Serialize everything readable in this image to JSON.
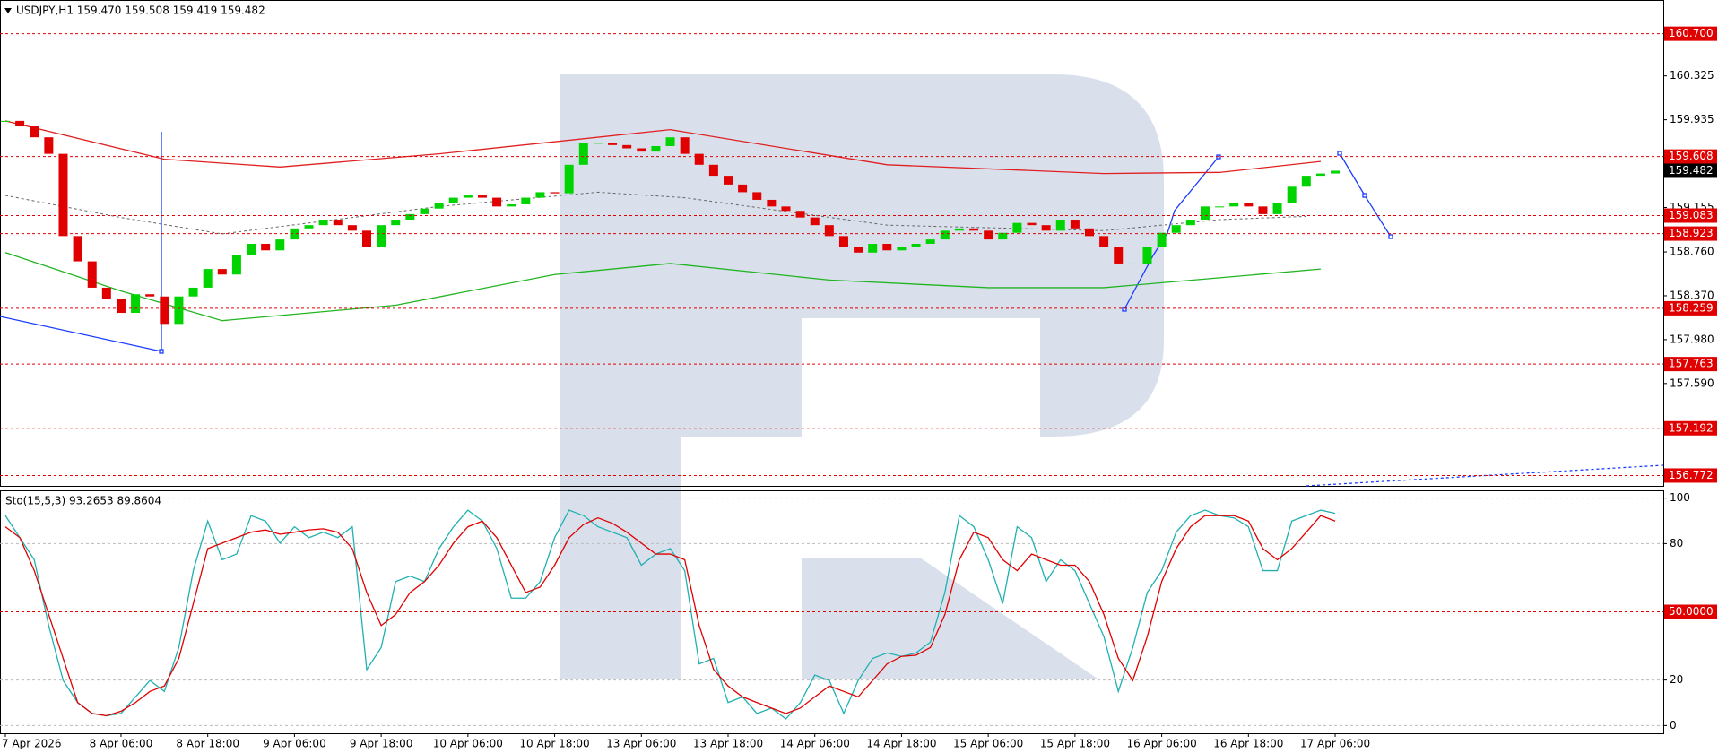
{
  "chart_data": [
    {
      "type": "candlestick",
      "title": "USDJPY,H1  159.470 159.508 159.419 159.482",
      "categories": [
        "7 Apr 2026",
        null,
        null,
        null,
        null,
        null,
        null,
        null,
        "8 Apr 06:00",
        null,
        null,
        null,
        null,
        null,
        "8 Apr 18:00",
        null,
        null,
        null,
        null,
        null,
        "9 Apr 06:00",
        null,
        null,
        null,
        null,
        null,
        "9 Apr 18:00",
        null,
        null,
        null,
        null,
        null,
        "10 Apr 06:00",
        null,
        null,
        null,
        null,
        null,
        "10 Apr 18:00",
        null,
        null,
        null,
        null,
        null,
        "13 Apr 06:00",
        null,
        null,
        null,
        null,
        null,
        "13 Apr 18:00",
        null,
        null,
        null,
        null,
        null,
        "14 Apr 06:00",
        null,
        null,
        null,
        null,
        null,
        "14 Apr 18:00",
        null,
        null,
        null,
        null,
        null,
        "15 Apr 06:00",
        null,
        null,
        null,
        null,
        null,
        "15 Apr 18:00",
        null,
        null,
        null,
        null,
        null,
        "16 Apr 06:00",
        null,
        null,
        null,
        null,
        null,
        "16 Apr 18:00",
        null,
        null,
        null,
        null,
        null,
        "17 Apr 06:00"
      ],
      "close": [
        159.925,
        159.876,
        159.779,
        159.632,
        158.901,
        158.676,
        158.442,
        158.344,
        158.218,
        158.384,
        158.364,
        158.12,
        158.364,
        158.442,
        158.608,
        158.559,
        158.735,
        158.832,
        158.774,
        158.871,
        158.969,
        158.998,
        159.047,
        158.998,
        158.949,
        158.803,
        158.998,
        159.047,
        159.096,
        159.145,
        159.193,
        159.242,
        159.262,
        159.242,
        159.164,
        159.183,
        159.242,
        159.291,
        159.281,
        159.535,
        159.73,
        159.73,
        159.71,
        159.681,
        159.652,
        159.701,
        159.779,
        159.632,
        159.535,
        159.437,
        159.359,
        159.291,
        159.223,
        159.164,
        159.125,
        159.066,
        158.998,
        158.901,
        158.803,
        158.754,
        158.832,
        158.774,
        158.803,
        158.832,
        158.871,
        158.949,
        158.969,
        158.949,
        158.871,
        158.93,
        159.018,
        158.998,
        158.949,
        159.047,
        158.969,
        158.901,
        158.803,
        158.657,
        158.657,
        158.803,
        158.93,
        158.998,
        159.047,
        159.164,
        159.164,
        159.193,
        159.164,
        159.096,
        159.193,
        159.34,
        159.437,
        159.457,
        159.482
      ],
      "up_color": "#00d400",
      "down_color": "#e00000",
      "overlays": [
        {
          "color": "#e02020",
          "dash": false,
          "x": [
            0,
            11,
            19,
            30,
            46,
            61,
            76,
            84,
            91
          ],
          "values": [
            159.925,
            159.584,
            159.515,
            159.632,
            159.847,
            159.535,
            159.457,
            159.467,
            159.564
          ]
        },
        {
          "color": "#22b422",
          "dash": false,
          "x": [
            0,
            8,
            15,
            27,
            38,
            46,
            57,
            68,
            76,
            84,
            91
          ],
          "values": [
            158.754,
            158.413,
            158.149,
            158.286,
            158.559,
            158.657,
            158.51,
            158.442,
            158.442,
            158.53,
            158.608
          ]
        },
        {
          "color": "#666666",
          "dash": true,
          "x": [
            0,
            8,
            15,
            30,
            41,
            47,
            61,
            76,
            84,
            90
          ],
          "values": [
            159.262,
            159.066,
            158.92,
            159.164,
            159.291,
            159.242,
            158.998,
            158.949,
            159.047,
            159.076
          ]
        }
      ],
      "levels": [
        {
          "value": 160.7,
          "label": "160.700"
        },
        159.608,
        159.083,
        158.923,
        158.259,
        157.763,
        157.192,
        156.772
      ],
      "level_color": "#e00000",
      "last": 159.482,
      "ylim": [
        156.68,
        161.0
      ],
      "yticks": [
        160.325,
        159.935,
        159.155,
        {
          "value": 158.76,
          "label": "158.760"
        },
        {
          "value": 158.37,
          "label": "158.370"
        },
        {
          "value": 157.98,
          "label": "157.980"
        },
        {
          "value": 157.59,
          "label": "157.590"
        }
      ],
      "grid": false
    },
    {
      "type": "line",
      "title": "Sto(15,5,3) 93.2653 89.8604",
      "series": [
        {
          "color": "#20b0b0",
          "values": [
            92.3,
            82.6,
            72.9,
            43.9,
            19.8,
            10.1,
            5.3,
            4.3,
            5.3,
            12.6,
            19.8,
            15,
            34.3,
            68.1,
            89.9,
            72.9,
            75.4,
            92.3,
            89.9,
            80.2,
            87.4,
            82.6,
            85,
            82.6,
            87.4,
            24.6,
            34.3,
            63.3,
            65.7,
            63.3,
            77.8,
            87.4,
            94.7,
            89.9,
            77.8,
            56,
            56,
            63.3,
            82.6,
            94.7,
            92.3,
            87.4,
            85,
            82.6,
            70.5,
            75.4,
            77.8,
            68.1,
            27.1,
            29.5,
            10.1,
            12.6,
            5.3,
            7.7,
            2.9,
            10.1,
            22.2,
            19.8,
            5.3,
            19.8,
            29.5,
            31.9,
            30.4,
            31.9,
            36.7,
            58.5,
            92.3,
            87.4,
            72.9,
            53.6,
            87.4,
            82.6,
            63.3,
            72.9,
            68.1,
            53.6,
            39.1,
            15,
            34.3,
            58.5,
            68.1,
            85,
            92.3,
            94.7,
            92.3,
            91.3,
            87.4,
            68.1,
            68.1,
            89.9,
            92.3,
            94.7,
            93.3
          ]
        },
        {
          "color": "#e00000",
          "values": [
            87.4,
            82.6,
            68.1,
            48.8,
            29.5,
            10.1,
            5.3,
            4.3,
            6.3,
            10.1,
            15,
            17.4,
            29.5,
            53.6,
            77.8,
            80.2,
            82.6,
            85,
            86,
            84.1,
            85,
            86,
            86.5,
            85,
            77.8,
            58.5,
            44,
            48.8,
            58.5,
            63.3,
            70.5,
            80.2,
            87.4,
            89.9,
            82.6,
            70.5,
            58.5,
            60.9,
            70.5,
            82.6,
            88.4,
            91.3,
            88.9,
            85,
            80.2,
            75.4,
            75.4,
            72.9,
            44,
            24.6,
            17.4,
            12.6,
            10.1,
            7.7,
            5.3,
            7.7,
            12.6,
            17.4,
            15,
            12.6,
            19.8,
            27.1,
            30.4,
            30.9,
            34.3,
            48.8,
            72.9,
            85,
            82.6,
            72.9,
            68.1,
            75.4,
            72.9,
            70.5,
            70.5,
            63.3,
            48.8,
            29.5,
            19.8,
            39.1,
            63.3,
            77.8,
            87.4,
            92.3,
            92.3,
            92.3,
            89.9,
            77.8,
            72.9,
            77.8,
            85,
            92.3,
            89.9
          ]
        }
      ],
      "levels": [
        {
          "value": 50,
          "label": "50.0000"
        }
      ],
      "level_color": "#e00000",
      "ylim": [
        -3.4,
        103.4
      ],
      "yticks": [
        100,
        80,
        20,
        0
      ],
      "grid": true
    }
  ]
}
